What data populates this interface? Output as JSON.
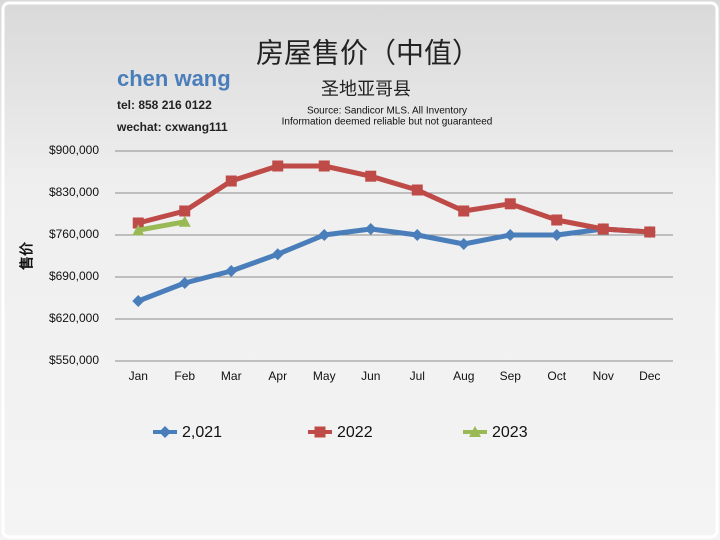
{
  "chart_data": {
    "type": "line",
    "title": "房屋售价（中值）",
    "subtitle": "圣地亚哥县",
    "author": "chen wang",
    "contact": [
      "tel: 858 216 0122",
      "wechat: cxwang111"
    ],
    "source": [
      "Source: Sandicor MLS. All Inventory",
      "Information deemed reliable but not guaranteed"
    ],
    "ylabel": "售价",
    "categories": [
      "Jan",
      "Feb",
      "Mar",
      "Apr",
      "May",
      "Jun",
      "Jul",
      "Aug",
      "Sep",
      "Oct",
      "Nov",
      "Dec"
    ],
    "series": [
      {
        "name": "2,021",
        "color": "#4a7ebb",
        "marker": "diamond",
        "values": [
          650000,
          680000,
          700000,
          728000,
          760000,
          770000,
          760000,
          745000,
          760000,
          760000,
          770000,
          765000
        ]
      },
      {
        "name": "2022",
        "color": "#be4b48",
        "marker": "square",
        "values": [
          780000,
          800000,
          850000,
          875000,
          875000,
          858000,
          835000,
          800000,
          812000,
          785000,
          770000,
          765000
        ]
      },
      {
        "name": "2023",
        "color": "#98b954",
        "marker": "triangle",
        "values": [
          768000,
          782000,
          null,
          null,
          null,
          null,
          null,
          null,
          null,
          null,
          null,
          null
        ]
      }
    ],
    "ylim": [
      550000,
      900000
    ],
    "yticks": [
      {
        "value": 550000,
        "label": "$550,000"
      },
      {
        "value": 620000,
        "label": "$620,000"
      },
      {
        "value": 690000,
        "label": "$690,000"
      },
      {
        "value": 760000,
        "label": "$760,000"
      },
      {
        "value": 830000,
        "label": "$830,000"
      },
      {
        "value": 900000,
        "label": "$900,000"
      }
    ],
    "grid": true,
    "legend": "bottom"
  }
}
